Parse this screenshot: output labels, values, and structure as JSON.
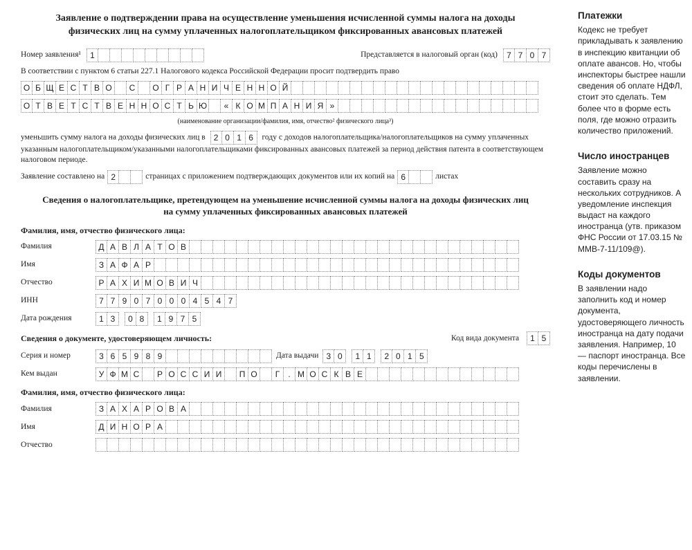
{
  "title": "Заявление о подтверждении права на осуществление уменьшения исчисленной суммы налога на доходы физических лиц на сумму уплаченных налогоплательщиком фиксированных авансовых платежей",
  "app_number_label": "Номер заявления¹",
  "app_number": "1",
  "app_number_cells": 10,
  "submit_label": "Представляется в налоговый орган (код)",
  "tax_code": "7707",
  "intro": "В соответствии с пунктом 6 статьи 227.1 Налогового кодекса Российской Федерации просит подтвердить право",
  "org_line1": "ОБЩЕСТВО С ОГРАНИЧЕННОЙ",
  "org_line2": "ОТВЕТСТВЕННОСТЬЮ «КОМПАНИЯ»",
  "org_cells": 44,
  "org_note": "(наименование организации/фамилия, имя, отчество² физического лица³)",
  "reduce_pre": "уменьшить сумму налога на доходы физических лиц в",
  "year": "2016",
  "reduce_post": "году с доходов налогоплательщика/налогоплательщиков на сумму уплаченных указанным налогоплательщиком/указанными налогоплательщиками фиксированных авансовых платежей за период действия патента в соответствующем налоговом периоде.",
  "pages_pre": "Заявление составлено на",
  "pages": "2",
  "pages_cells": 3,
  "pages_mid": "страницах с приложением подтверждающих документов или их копий на",
  "sheets": "6",
  "sheets_cells": 3,
  "pages_post": "листах",
  "subtitle": "Сведения о налогоплательщике, претендующем на уменьшение исчисленной суммы налога на доходы физических лиц на сумму уплаченных фиксированных авансовых платежей",
  "fio_section": "Фамилия, имя, отчество физического лица:",
  "surname_label": "Фамилия",
  "surname": "ДАВЛАТОВ",
  "name_label": "Имя",
  "name": "ЗАФАР",
  "patronymic_label": "Отчество",
  "patronymic": "РАХИМОВИЧ",
  "inn_label": "ИНН",
  "inn": "779070004547",
  "dob_label": "Дата рождения",
  "dob_d": "13",
  "dob_m": "08",
  "dob_y": "1975",
  "doc_section": "Сведения о документе, удостоверяющем личность:",
  "doc_code_label": "Код вида документа",
  "doc_code": "15",
  "serial_label": "Серия и номер",
  "serial": "365989",
  "issue_date_label": "Дата выдачи",
  "issue_d": "30",
  "issue_m": "11",
  "issue_y": "2015",
  "issued_by_label": "Кем выдан",
  "issued_by": "УФМС РОССИИ ПО Г.МОСКВЕ",
  "fio_section2": "Фамилия, имя, отчество физического лица:",
  "surname2": "ЗАХАРОВА",
  "name2": "ДИНОРА",
  "patronymic2": "",
  "long_cells": 36,
  "inn_cells": 12,
  "sidebar": [
    {
      "title": "Платежки",
      "text": "Кодекс не требует прикладывать к заявлению в инспекцию квитанции об оплате авансов. Но, чтобы инспекторы быстрее нашли сведения об оплате НДФЛ, стоит это сделать. Тем более что в форме есть поля, где можно отразить количество приложений."
    },
    {
      "title": "Число иностранцев",
      "text": "Заявление можно составить сразу на нескольких сотрудников. А уведомление инспекция выдаст на каждого иностранца (утв. приказом ФНС России от 17.03.15 № ММВ-7-11/109@)."
    },
    {
      "title": "Коды документов",
      "text": "В заявлении надо заполнить код и номер документа, удостоверяющего личность иностранца на дату подачи заявления. Например, 10 — паспорт иностранца. Все коды перечислены в заявлении."
    }
  ]
}
